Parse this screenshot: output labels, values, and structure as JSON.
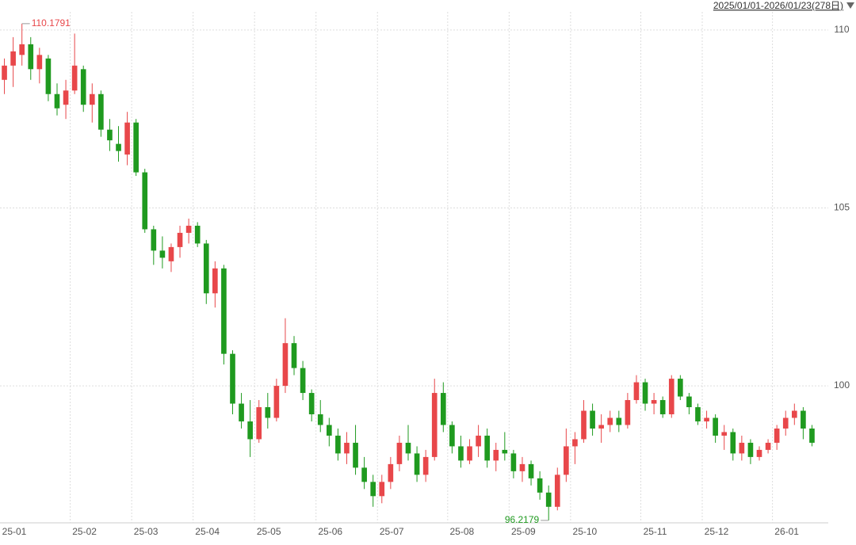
{
  "chart_data": {
    "type": "candlestick",
    "subtitle": "2025/01/01-2026/01/23(278日)",
    "categories": [
      "25-01",
      null,
      null,
      null,
      null,
      null,
      null,
      null,
      "25-02",
      null,
      null,
      null,
      null,
      null,
      null,
      "25-03",
      null,
      null,
      null,
      null,
      null,
      null,
      "25-04",
      null,
      null,
      null,
      null,
      null,
      null,
      "25-05",
      null,
      null,
      null,
      null,
      null,
      null,
      "25-06",
      null,
      null,
      null,
      null,
      null,
      null,
      "25-07",
      null,
      null,
      null,
      null,
      null,
      null,
      null,
      "25-08",
      null,
      null,
      null,
      null,
      null,
      null,
      "25-09",
      null,
      null,
      null,
      null,
      null,
      null,
      "25-10",
      null,
      null,
      null,
      null,
      null,
      null,
      null,
      "25-11",
      null,
      null,
      null,
      null,
      null,
      null,
      "25-12",
      null,
      null,
      null,
      null,
      null,
      null,
      null,
      "26-01",
      null,
      null,
      null,
      null
    ],
    "open": [
      108.6,
      109.0,
      109.3,
      109.6,
      108.9,
      109.2,
      108.2,
      107.9,
      108.3,
      108.9,
      107.9,
      108.2,
      107.2,
      106.8,
      106.5,
      107.4,
      106.0,
      104.4,
      103.8,
      103.5,
      103.9,
      104.3,
      104.5,
      104.0,
      102.6,
      103.3,
      100.9,
      99.5,
      99.0,
      98.5,
      99.4,
      99.1,
      100.0,
      101.2,
      100.5,
      99.8,
      99.2,
      98.9,
      98.6,
      98.1,
      98.4,
      97.7,
      97.3,
      96.9,
      97.3,
      97.8,
      98.4,
      98.1,
      97.5,
      98.0,
      99.8,
      98.9,
      98.3,
      97.9,
      98.3,
      98.6,
      97.9,
      98.2,
      98.1,
      97.6,
      97.8,
      97.4,
      97.0,
      96.6,
      97.5,
      98.3,
      98.5,
      99.3,
      98.8,
      98.9,
      99.1,
      98.9,
      99.6,
      100.1,
      99.5,
      99.6,
      99.2,
      100.2,
      99.7,
      99.4,
      99.0,
      99.1,
      98.6,
      98.7,
      98.1,
      98.4,
      98.0,
      98.2,
      98.4,
      98.8,
      99.1,
      99.3,
      98.8
    ],
    "high": [
      109.2,
      109.8,
      110.1791,
      109.8,
      109.5,
      109.3,
      108.5,
      108.6,
      109.9,
      109.0,
      108.5,
      108.3,
      107.5,
      107.3,
      107.7,
      107.5,
      106.1,
      104.5,
      104.2,
      104.0,
      104.5,
      104.7,
      104.6,
      104.1,
      103.5,
      103.4,
      101.0,
      99.8,
      99.6,
      99.6,
      99.8,
      100.2,
      101.9,
      101.4,
      100.7,
      99.9,
      99.6,
      99.1,
      98.8,
      98.7,
      98.9,
      98.0,
      97.5,
      97.5,
      98.0,
      98.6,
      98.9,
      98.3,
      98.2,
      100.2,
      100.1,
      99.0,
      98.6,
      98.5,
      98.9,
      98.8,
      98.4,
      98.7,
      98.2,
      98.0,
      97.9,
      97.6,
      97.2,
      97.7,
      98.8,
      98.7,
      99.6,
      99.5,
      99.2,
      99.3,
      99.3,
      99.8,
      100.3,
      100.2,
      99.8,
      99.7,
      100.3,
      100.3,
      99.8,
      99.5,
      99.3,
      99.2,
      98.9,
      98.8,
      98.6,
      98.5,
      98.3,
      98.5,
      98.9,
      99.3,
      99.5,
      99.4,
      98.9
    ],
    "low": [
      108.2,
      108.4,
      109.0,
      108.6,
      108.5,
      108.0,
      107.6,
      107.5,
      108.2,
      107.7,
      107.4,
      107.0,
      106.6,
      106.3,
      106.2,
      105.9,
      104.3,
      103.4,
      103.3,
      103.2,
      103.6,
      104.0,
      103.9,
      102.3,
      102.2,
      100.6,
      99.2,
      98.8,
      98.0,
      98.4,
      98.8,
      99.0,
      99.8,
      100.3,
      99.6,
      99.0,
      98.7,
      98.3,
      97.9,
      97.8,
      97.5,
      97.1,
      96.6,
      96.7,
      97.1,
      97.6,
      97.9,
      97.3,
      97.3,
      97.9,
      98.7,
      98.1,
      97.7,
      97.8,
      98.0,
      97.7,
      97.6,
      97.9,
      97.4,
      97.3,
      97.2,
      96.8,
      96.2179,
      96.5,
      97.3,
      97.8,
      98.4,
      98.6,
      98.4,
      98.7,
      98.7,
      98.8,
      99.5,
      99.3,
      99.2,
      99.1,
      99.1,
      99.6,
      99.2,
      98.9,
      98.8,
      98.4,
      98.2,
      97.9,
      97.9,
      97.8,
      97.9,
      98.1,
      98.2,
      98.6,
      98.9,
      98.5,
      98.3
    ],
    "close": [
      109.0,
      109.4,
      109.6,
      108.9,
      109.3,
      108.2,
      107.8,
      108.3,
      109.0,
      107.9,
      108.2,
      107.2,
      106.9,
      106.6,
      107.4,
      106.0,
      104.4,
      103.8,
      103.6,
      103.9,
      104.3,
      104.5,
      104.0,
      102.6,
      103.3,
      100.9,
      99.5,
      99.0,
      98.5,
      99.4,
      99.1,
      100.0,
      101.2,
      100.5,
      99.8,
      99.2,
      98.9,
      98.6,
      98.1,
      98.4,
      97.7,
      97.3,
      96.9,
      97.3,
      97.8,
      98.4,
      98.1,
      97.5,
      98.0,
      99.8,
      98.9,
      98.3,
      97.9,
      98.3,
      98.6,
      97.9,
      98.2,
      98.1,
      97.6,
      97.8,
      97.4,
      97.0,
      96.6,
      97.5,
      98.3,
      98.5,
      99.3,
      98.8,
      98.9,
      99.1,
      98.9,
      99.6,
      100.1,
      99.5,
      99.6,
      99.2,
      100.2,
      99.7,
      99.4,
      99.0,
      99.1,
      98.6,
      98.7,
      98.1,
      98.4,
      98.0,
      98.2,
      98.4,
      98.8,
      99.1,
      99.3,
      98.8,
      98.4
    ],
    "up_color": "#e8474a",
    "down_color": "#1f9a1f",
    "ylim": [
      96.15,
      110.51
    ],
    "yticks": [
      100,
      105,
      110
    ],
    "grid": true
  }
}
